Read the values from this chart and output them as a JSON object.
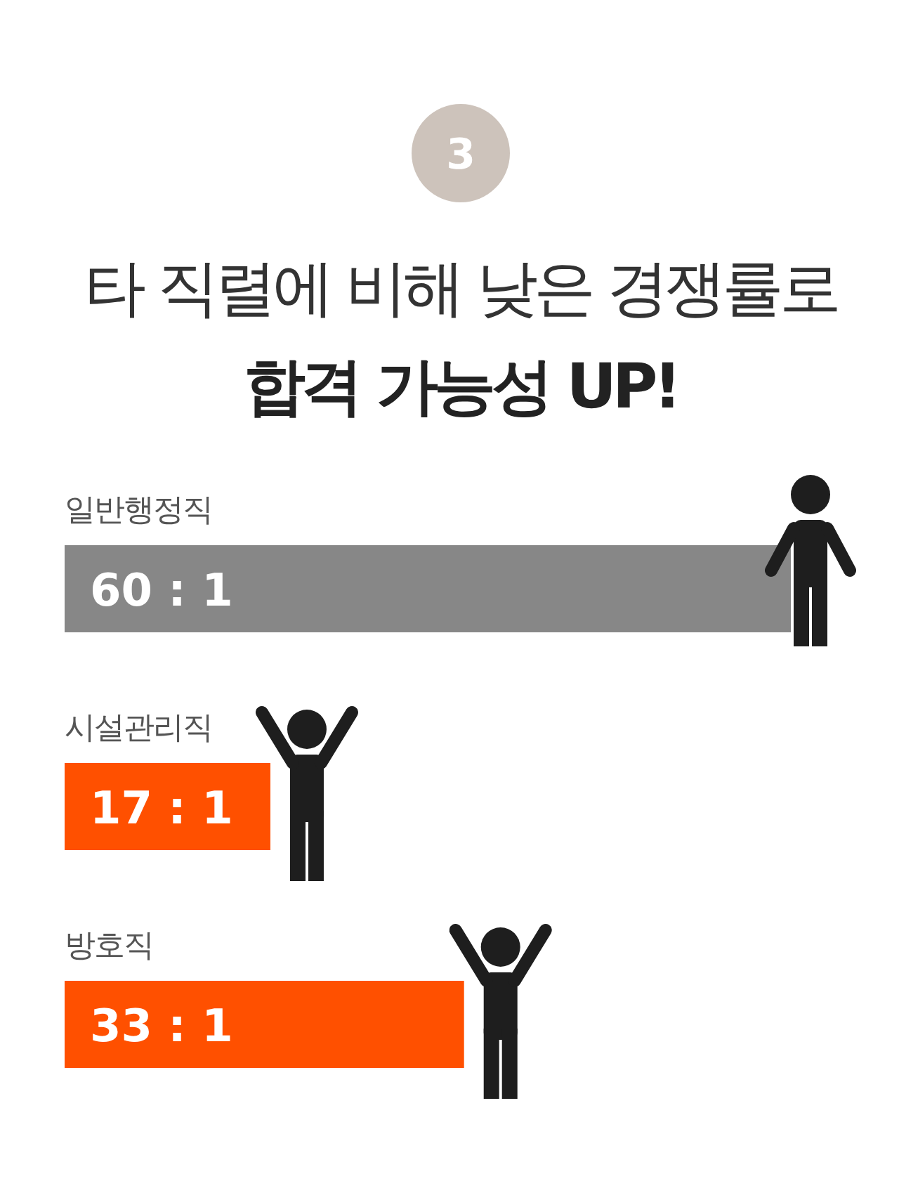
{
  "chart_data": {
    "type": "bar",
    "orientation": "horizontal",
    "title": "타 직렬에 비해 낮은 경쟁률로",
    "subtitle": "합격 가능성 UP!",
    "annotations": [
      "3"
    ],
    "categories": [
      "일반행정직",
      "시설관리직",
      "방호직"
    ],
    "values": [
      60,
      17,
      33
    ],
    "colors": [
      "#878787",
      "#ff5000",
      "#ff5000"
    ],
    "value_labels": [
      "60 : 1",
      "17 : 1",
      "33 : 1"
    ]
  }
}
